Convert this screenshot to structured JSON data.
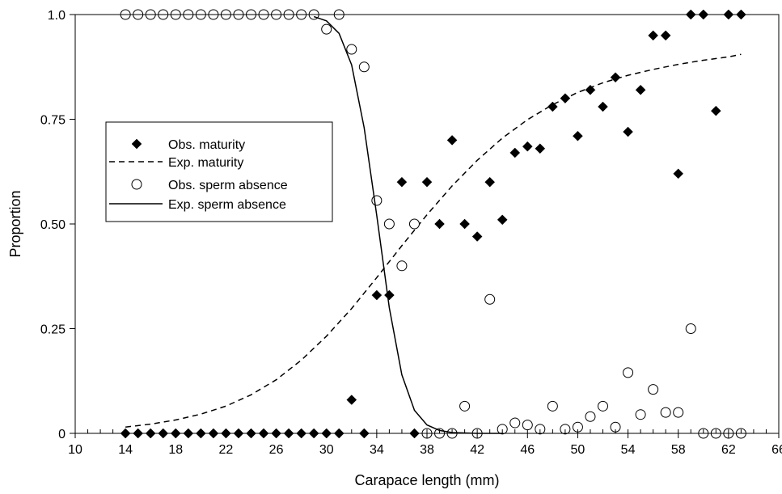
{
  "chart_data": {
    "type": "scatter",
    "title": "",
    "xlabel": "Carapace length (mm)",
    "ylabel": "Proportion",
    "xlim": [
      10,
      66
    ],
    "ylim": [
      0,
      1
    ],
    "x_ticks": [
      10,
      14,
      18,
      22,
      26,
      30,
      34,
      38,
      42,
      46,
      50,
      54,
      58,
      62,
      66
    ],
    "x_tick_labels": [
      "10",
      "14",
      "18",
      "22",
      "26",
      "30",
      "34",
      "38",
      "42",
      "46",
      "50",
      "54",
      "58",
      "62",
      "66"
    ],
    "y_ticks": [
      0,
      0.25,
      0.5,
      0.75,
      1.0
    ],
    "y_tick_labels": [
      "0",
      "0.25",
      "0.50",
      "0.75",
      "1.0"
    ],
    "x_minor_tick_step": 1,
    "grid": false,
    "legend_position": "left",
    "series": [
      {
        "name": "Obs. maturity",
        "kind": "scatter",
        "marker": "filled-diamond",
        "color": "#000000",
        "x": [
          14,
          15,
          16,
          17,
          18,
          19,
          20,
          21,
          22,
          23,
          24,
          25,
          26,
          27,
          28,
          29,
          30,
          31,
          32,
          33,
          34,
          35,
          36,
          37,
          38,
          39,
          40,
          41,
          42,
          43,
          44,
          45,
          46,
          47,
          48,
          49,
          50,
          51,
          52,
          53,
          54,
          55,
          56,
          57,
          58,
          59,
          60,
          61,
          62,
          63
        ],
        "y": [
          0,
          0,
          0,
          0,
          0,
          0,
          0,
          0,
          0,
          0,
          0,
          0,
          0,
          0,
          0,
          0,
          0,
          0,
          0.08,
          0,
          0.33,
          0.33,
          0.6,
          0,
          0.6,
          0.5,
          0.7,
          0.5,
          0.47,
          0.6,
          0.51,
          0.67,
          0.685,
          0.68,
          0.78,
          0.8,
          0.71,
          0.82,
          0.78,
          0.85,
          0.72,
          0.82,
          0.95,
          0.95,
          0.62,
          1.0,
          1.0,
          0.77,
          1.0,
          1.0
        ]
      },
      {
        "name": "Exp. maturity",
        "kind": "line",
        "dash": "dashed",
        "color": "#000000",
        "x": [
          14,
          16,
          18,
          20,
          22,
          24,
          26,
          28,
          30,
          32,
          34,
          36,
          38,
          40,
          42,
          44,
          46,
          48,
          50,
          52,
          54,
          56,
          58,
          60,
          62,
          63
        ],
        "y": [
          0.015,
          0.022,
          0.032,
          0.046,
          0.065,
          0.092,
          0.128,
          0.175,
          0.232,
          0.298,
          0.372,
          0.448,
          0.522,
          0.591,
          0.652,
          0.705,
          0.749,
          0.785,
          0.814,
          0.837,
          0.855,
          0.869,
          0.881,
          0.891,
          0.899,
          0.905
        ]
      },
      {
        "name": "Obs. sperm absence",
        "kind": "scatter",
        "marker": "open-circle",
        "color": "#000000",
        "x": [
          14,
          15,
          16,
          17,
          18,
          19,
          20,
          21,
          22,
          23,
          24,
          25,
          26,
          27,
          28,
          29,
          30,
          31,
          32,
          33,
          34,
          35,
          36,
          37,
          38,
          39,
          40,
          41,
          42,
          43,
          44,
          45,
          46,
          47,
          48,
          49,
          50,
          51,
          52,
          53,
          54,
          55,
          56,
          57,
          58,
          59,
          60,
          61,
          62,
          63
        ],
        "y": [
          1,
          1,
          1,
          1,
          1,
          1,
          1,
          1,
          1,
          1,
          1,
          1,
          1,
          1,
          1,
          1,
          0.965,
          1,
          0.917,
          0.875,
          0.556,
          0.5,
          0.4,
          0.5,
          0,
          0,
          0,
          0.065,
          0,
          0.32,
          0.01,
          0.025,
          0.02,
          0.01,
          0.065,
          0.01,
          0.015,
          0.04,
          0.065,
          0.015,
          0.145,
          0.045,
          0.105,
          0.05,
          0.05,
          0.25,
          0,
          0,
          0,
          0
        ]
      },
      {
        "name": "Exp. sperm absence",
        "kind": "line",
        "dash": "solid",
        "color": "#000000",
        "x": [
          29,
          30,
          31,
          32,
          33,
          34,
          35,
          36,
          37,
          38,
          39,
          40,
          41,
          42,
          43,
          44
        ],
        "y": [
          0.995,
          0.985,
          0.955,
          0.88,
          0.73,
          0.52,
          0.3,
          0.14,
          0.055,
          0.02,
          0.007,
          0.002,
          0.001,
          0,
          0,
          0
        ]
      }
    ]
  }
}
